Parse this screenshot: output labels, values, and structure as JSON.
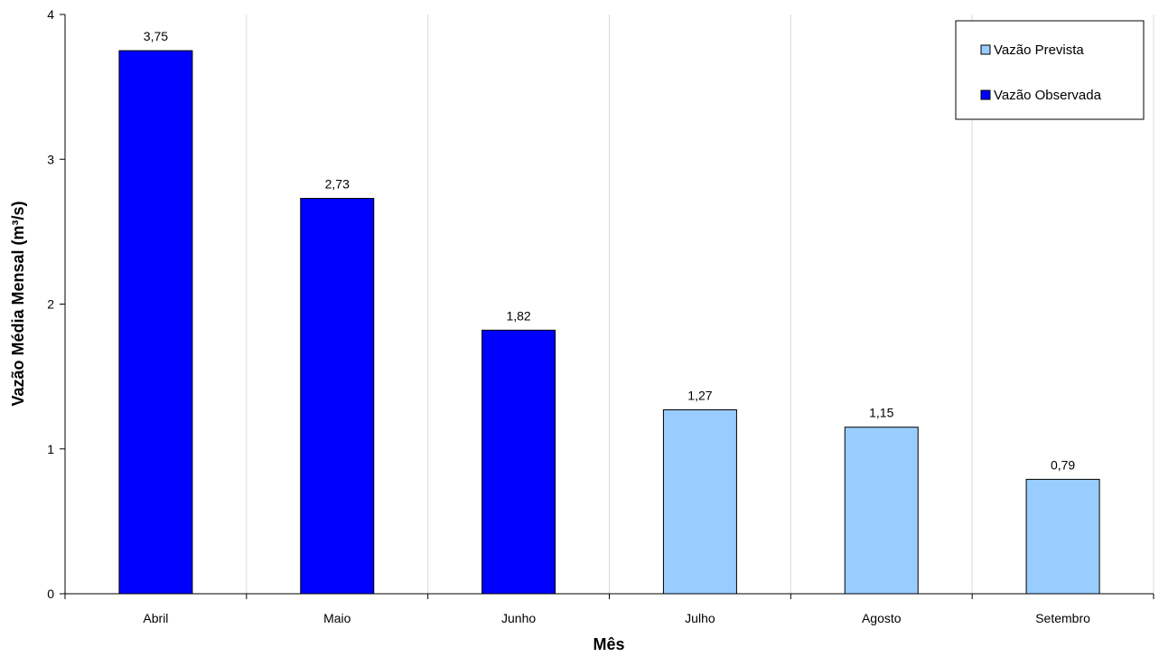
{
  "chart_data": {
    "type": "bar",
    "title": "",
    "xlabel": "Mês",
    "ylabel": "Vazão Média Mensal (m³/s)",
    "ylim": [
      0,
      4
    ],
    "yticks": [
      0,
      1,
      2,
      3,
      4
    ],
    "categories": [
      "Abril",
      "Maio",
      "Junho",
      "Julho",
      "Agosto",
      "Setembro"
    ],
    "values": [
      3.75,
      2.73,
      1.82,
      1.27,
      1.15,
      0.79
    ],
    "value_labels": [
      "3,75",
      "2,73",
      "1,82",
      "1,27",
      "1,15",
      "0,79"
    ],
    "series_of_bar": [
      "Vazão Observada",
      "Vazão Observada",
      "Vazão Observada",
      "Vazão Prevista",
      "Vazão Prevista",
      "Vazão Prevista"
    ],
    "series": [
      {
        "name": "Vazão Prevista",
        "color": "#99ccff",
        "values": [
          null,
          null,
          null,
          1.27,
          1.15,
          0.79
        ]
      },
      {
        "name": "Vazão Observada",
        "color": "#0000ff",
        "values": [
          3.75,
          2.73,
          1.82,
          null,
          null,
          null
        ]
      }
    ],
    "grid": "vertical",
    "legend_position": "top-right"
  }
}
